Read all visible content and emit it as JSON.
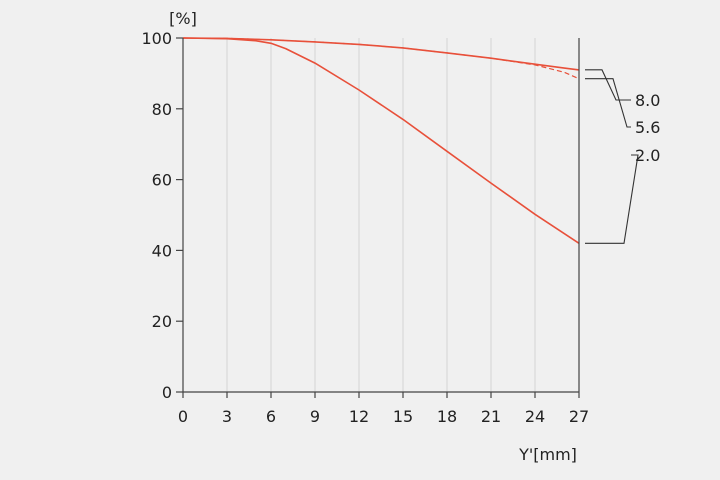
{
  "colors": {
    "background": "#f0f0f0",
    "series": "#e8503a",
    "grid": "#d4d4d4",
    "axis": "#444444",
    "text": "#222222"
  },
  "chart_data": {
    "type": "line",
    "ylabel": "[%]",
    "xlabel": "Y'[mm]",
    "xlim": [
      0,
      27
    ],
    "ylim": [
      0,
      100
    ],
    "xticks": [
      0,
      3,
      6,
      9,
      12,
      15,
      18,
      21,
      24,
      27
    ],
    "yticks": [
      0,
      20,
      40,
      60,
      80,
      100
    ],
    "grid": "vertical",
    "legend": "right, leader lines",
    "series": [
      {
        "name": "8.0",
        "x": [
          0,
          3,
          6,
          9,
          12,
          15,
          18,
          21,
          24,
          26,
          27
        ],
        "y": [
          100,
          99.9,
          99.5,
          98.9,
          98.2,
          97.2,
          95.8,
          94.3,
          92.6,
          91.5,
          91.0
        ],
        "style": "solid"
      },
      {
        "name": "5.6",
        "x": [
          0,
          3,
          6,
          9,
          12,
          15,
          18,
          21,
          24,
          26,
          27
        ],
        "y": [
          100,
          99.9,
          99.5,
          98.9,
          98.2,
          97.2,
          95.8,
          94.3,
          92.4,
          90.3,
          88.5
        ],
        "style": "dashed"
      },
      {
        "name": "2.0",
        "x": [
          0,
          3,
          5,
          6,
          7,
          9,
          12,
          15,
          18,
          21,
          24,
          27
        ],
        "y": [
          100,
          99.8,
          99.2,
          98.5,
          97.0,
          92.9,
          85.3,
          77.0,
          68.0,
          59.0,
          50.2,
          42.0
        ],
        "style": "solid"
      }
    ]
  }
}
